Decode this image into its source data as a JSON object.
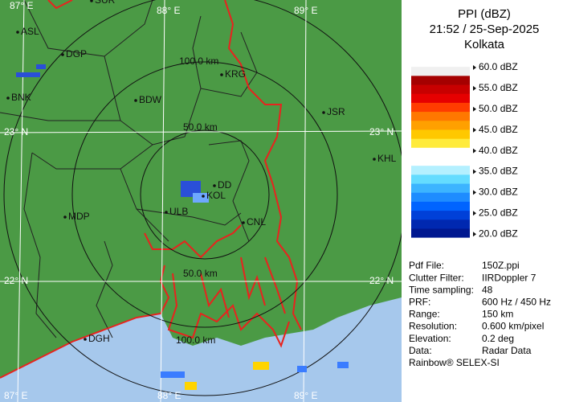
{
  "header": {
    "title": "PPI (dBZ)",
    "datetime": "21:52 / 25-Sep-2025",
    "station": "Kolkata"
  },
  "legend": [
    "60.0 dBZ",
    "55.0 dBZ",
    "50.0 dBZ",
    "45.0 dBZ",
    "40.0 dBZ",
    "35.0 dBZ",
    "30.0 dBZ",
    "25.0 dBZ",
    "20.0 dBZ"
  ],
  "info": [
    [
      "Pdf File:",
      "150Z.ppi"
    ],
    [
      "Clutter Filter:",
      "IIRDoppler 7"
    ],
    [
      "Time sampling:",
      "48"
    ],
    [
      "PRF:",
      "600 Hz / 450 Hz"
    ],
    [
      "Range:",
      "150 km"
    ],
    [
      "Resolution:",
      "0.600 km/pixel"
    ],
    [
      "Elevation:",
      "0.2 deg"
    ],
    [
      "Data:",
      "Radar Data"
    ]
  ],
  "footer": "Rainbow® SELEX-SI",
  "map": {
    "grid_labels": [
      "87° E",
      "88° E",
      "89° E",
      "23° N",
      "23° N",
      "22° N",
      "22° N",
      "87° E",
      "88° E",
      "89° E"
    ],
    "ring_labels": [
      "100.0 km",
      "50.0 km",
      "50.0 km",
      "100.0 km"
    ],
    "cities": [
      "SUR",
      "ASL",
      "DGP",
      "BNK",
      "BDW",
      "KRG",
      "JSR",
      "KHL",
      "DD",
      "KOL",
      "ULB",
      "CNL",
      "MDP",
      "DGH"
    ]
  }
}
